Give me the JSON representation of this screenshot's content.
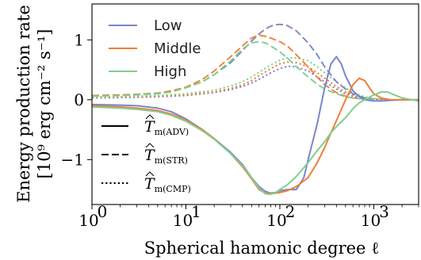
{
  "chart_data": {
    "type": "line",
    "xlabel": "Spherical hamonic degree ℓ",
    "ylabel_line1": "Energy production rate",
    "ylabel_line2": "[10⁹ erg cm⁻² s⁻¹]",
    "xscale": "log",
    "xlim": [
      1,
      3000
    ],
    "ylim": [
      -1.75,
      1.6
    ],
    "x_ticks": [
      {
        "value": 1,
        "label": "10",
        "exp": "0"
      },
      {
        "value": 10,
        "label": "10",
        "exp": "1"
      },
      {
        "value": 100,
        "label": "10",
        "exp": "2"
      },
      {
        "value": 1000,
        "label": "10",
        "exp": "3"
      }
    ],
    "y_ticks": [
      {
        "value": -1,
        "label": "−1"
      },
      {
        "value": 0,
        "label": "0"
      },
      {
        "value": 1,
        "label": "1"
      }
    ],
    "grid": false,
    "legend_color": {
      "position": "top-left",
      "entries": [
        {
          "name": "Low",
          "color": "#7b86c9"
        },
        {
          "name": "Middle",
          "color": "#ef7f39"
        },
        {
          "name": "High",
          "color": "#7fcf8e"
        }
      ]
    },
    "legend_style": {
      "position": "bottom-left",
      "entries": [
        {
          "style": "solid",
          "sub": "m(ADV)"
        },
        {
          "style": "dashed",
          "sub": "m(STR)"
        },
        {
          "style": "dotted",
          "sub": "m(CMP)"
        }
      ]
    },
    "series": [
      {
        "group": "Low",
        "style": "solid",
        "color": "#7b86c9",
        "x": [
          1,
          2,
          3,
          5,
          7,
          10,
          15,
          20,
          30,
          40,
          50,
          60,
          70,
          80,
          90,
          100,
          120,
          150,
          180,
          200,
          250,
          300,
          350,
          400,
          450,
          500,
          600,
          700,
          800,
          1000,
          1200,
          1500,
          2000,
          3000
        ],
        "y": [
          -0.08,
          -0.09,
          -0.1,
          -0.14,
          -0.2,
          -0.32,
          -0.5,
          -0.65,
          -0.88,
          -1.08,
          -1.3,
          -1.45,
          -1.53,
          -1.56,
          -1.55,
          -1.52,
          -1.5,
          -1.5,
          -1.3,
          -1.0,
          -0.4,
          0.2,
          0.6,
          0.72,
          0.6,
          0.4,
          0.15,
          0.05,
          0.0,
          -0.02,
          -0.02,
          -0.01,
          0,
          0
        ]
      },
      {
        "group": "Middle",
        "style": "solid",
        "color": "#ef7f39",
        "x": [
          1,
          2,
          3,
          5,
          7,
          10,
          15,
          20,
          30,
          40,
          50,
          60,
          70,
          80,
          90,
          100,
          120,
          150,
          200,
          250,
          300,
          350,
          400,
          500,
          600,
          700,
          800,
          900,
          1000,
          1200,
          1500,
          2000,
          3000
        ],
        "y": [
          -0.1,
          -0.12,
          -0.14,
          -0.18,
          -0.24,
          -0.34,
          -0.5,
          -0.65,
          -0.9,
          -1.12,
          -1.32,
          -1.5,
          -1.56,
          -1.57,
          -1.56,
          -1.55,
          -1.52,
          -1.45,
          -1.3,
          -1.05,
          -0.8,
          -0.55,
          -0.35,
          0.0,
          0.25,
          0.36,
          0.32,
          0.2,
          0.1,
          0.03,
          0.0,
          0.0,
          0.0
        ]
      },
      {
        "group": "High",
        "style": "solid",
        "color": "#7fcf8e",
        "x": [
          1,
          2,
          3,
          5,
          7,
          10,
          15,
          20,
          30,
          40,
          50,
          60,
          70,
          80,
          90,
          100,
          120,
          150,
          200,
          250,
          300,
          350,
          400,
          500,
          600,
          700,
          800,
          1000,
          1200,
          1400,
          1600,
          2000,
          3000
        ],
        "y": [
          -0.12,
          -0.14,
          -0.16,
          -0.2,
          -0.26,
          -0.36,
          -0.52,
          -0.66,
          -0.9,
          -1.1,
          -1.3,
          -1.48,
          -1.57,
          -1.58,
          -1.55,
          -1.5,
          -1.42,
          -1.28,
          -1.05,
          -0.85,
          -0.7,
          -0.55,
          -0.45,
          -0.3,
          -0.15,
          -0.05,
          0.0,
          0.08,
          0.13,
          0.13,
          0.09,
          0.03,
          -0.02
        ]
      },
      {
        "group": "Low",
        "style": "dashed",
        "color": "#7b86c9",
        "x": [
          1,
          2,
          3,
          5,
          7,
          10,
          15,
          20,
          30,
          40,
          50,
          60,
          70,
          80,
          90,
          100,
          120,
          150,
          200,
          250,
          300,
          400,
          500,
          600,
          700,
          800,
          1000
        ],
        "y": [
          0.07,
          0.08,
          0.09,
          0.11,
          0.14,
          0.2,
          0.3,
          0.42,
          0.62,
          0.82,
          0.98,
          1.1,
          1.18,
          1.23,
          1.25,
          1.26,
          1.24,
          1.15,
          0.95,
          0.75,
          0.55,
          0.3,
          0.18,
          0.1,
          0.06,
          0.03,
          0.01
        ]
      },
      {
        "group": "Middle",
        "style": "dashed",
        "color": "#ef7f39",
        "x": [
          1,
          2,
          3,
          5,
          7,
          10,
          15,
          20,
          30,
          40,
          50,
          60,
          70,
          80,
          100,
          120,
          150,
          200,
          250,
          300,
          400,
          500,
          600,
          800,
          1000
        ],
        "y": [
          0.07,
          0.08,
          0.09,
          0.11,
          0.15,
          0.21,
          0.34,
          0.48,
          0.72,
          0.9,
          1.03,
          1.08,
          1.06,
          1.03,
          0.97,
          0.9,
          0.75,
          0.55,
          0.38,
          0.25,
          0.12,
          0.06,
          0.03,
          0.01,
          0.0
        ]
      },
      {
        "group": "High",
        "style": "dashed",
        "color": "#7fcf8e",
        "x": [
          1,
          2,
          3,
          5,
          7,
          10,
          15,
          20,
          30,
          40,
          50,
          60,
          70,
          80,
          100,
          120,
          150,
          200,
          250,
          300,
          400,
          500,
          600,
          800,
          1000
        ],
        "y": [
          0.06,
          0.07,
          0.08,
          0.1,
          0.13,
          0.2,
          0.3,
          0.42,
          0.65,
          0.85,
          0.95,
          0.97,
          0.95,
          0.9,
          0.8,
          0.7,
          0.55,
          0.38,
          0.26,
          0.18,
          0.1,
          0.05,
          0.03,
          0.01,
          0.0
        ]
      },
      {
        "group": "Low",
        "style": "dotted",
        "color": "#7b86c9",
        "x": [
          1,
          3,
          5,
          10,
          20,
          30,
          40,
          50,
          60,
          80,
          100,
          120,
          150,
          200,
          250,
          300,
          400,
          500,
          600,
          800,
          1000,
          1500
        ],
        "y": [
          0.03,
          0.04,
          0.05,
          0.07,
          0.12,
          0.17,
          0.22,
          0.28,
          0.34,
          0.45,
          0.52,
          0.56,
          0.55,
          0.48,
          0.38,
          0.3,
          0.18,
          0.1,
          0.06,
          0.02,
          0.01,
          0.0
        ]
      },
      {
        "group": "Middle",
        "style": "dotted",
        "color": "#ef7f39",
        "x": [
          1,
          3,
          5,
          10,
          20,
          30,
          40,
          50,
          60,
          80,
          100,
          120,
          150,
          200,
          250,
          300,
          400,
          500,
          600,
          800,
          1000,
          1500
        ],
        "y": [
          0.04,
          0.05,
          0.06,
          0.08,
          0.13,
          0.19,
          0.25,
          0.32,
          0.4,
          0.52,
          0.6,
          0.63,
          0.62,
          0.55,
          0.45,
          0.36,
          0.22,
          0.13,
          0.08,
          0.03,
          0.01,
          0.0
        ]
      },
      {
        "group": "High",
        "style": "dotted",
        "color": "#7fcf8e",
        "x": [
          1,
          3,
          5,
          10,
          20,
          30,
          40,
          50,
          60,
          80,
          100,
          120,
          150,
          200,
          250,
          300,
          400,
          500,
          600,
          800,
          1000,
          1500
        ],
        "y": [
          0.05,
          0.06,
          0.07,
          0.1,
          0.16,
          0.23,
          0.3,
          0.38,
          0.46,
          0.58,
          0.66,
          0.7,
          0.7,
          0.65,
          0.55,
          0.45,
          0.3,
          0.2,
          0.12,
          0.05,
          0.02,
          0.0
        ]
      }
    ]
  }
}
